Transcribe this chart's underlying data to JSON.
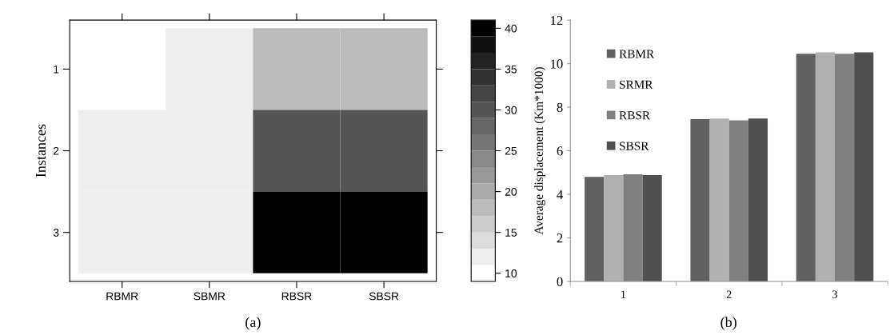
{
  "chart_data": [
    {
      "type": "heatmap",
      "ylabel": "Instances",
      "categories": [
        "RBMR",
        "SBMR",
        "RBSR",
        "SBSR"
      ],
      "y_categories": [
        "1",
        "2",
        "3"
      ],
      "cells": [
        [
          10,
          12,
          18,
          18
        ],
        [
          12,
          12,
          30,
          30
        ],
        [
          12,
          12,
          40,
          40
        ]
      ],
      "clim": [
        9,
        41
      ],
      "cticks": [
        10,
        15,
        20,
        25,
        30,
        35,
        40
      ],
      "annotations": [
        "(a)"
      ]
    },
    {
      "type": "bar",
      "ylabel": "Average displacement (Km*1000)",
      "categories": [
        "1",
        "2",
        "3"
      ],
      "series": [
        {
          "name": "RBMR",
          "color": "#606060",
          "values": [
            4.8,
            7.45,
            10.45
          ]
        },
        {
          "name": "SRMR",
          "color": "#b0b0b0",
          "values": [
            4.88,
            7.48,
            10.52
          ]
        },
        {
          "name": "RBSR",
          "color": "#808080",
          "values": [
            4.92,
            7.4,
            10.45
          ]
        },
        {
          "name": "SBSR",
          "color": "#505050",
          "values": [
            4.88,
            7.48,
            10.52
          ]
        }
      ],
      "ylim": [
        0,
        12
      ],
      "yticks": [
        0,
        2,
        4,
        6,
        8,
        10,
        12
      ],
      "grid": false,
      "legend": "top left",
      "annotations": [
        "(b)"
      ]
    }
  ]
}
